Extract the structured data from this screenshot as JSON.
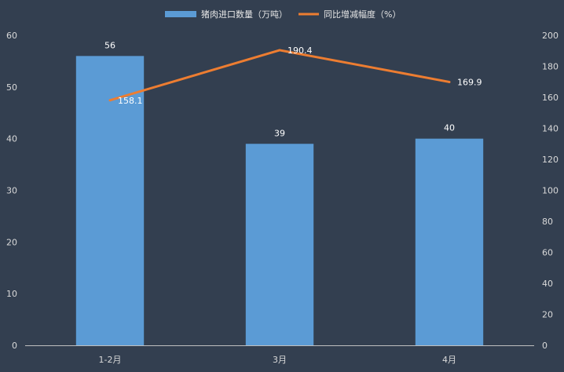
{
  "chart_data": {
    "type": "bar",
    "categories": [
      "1-2月",
      "3月",
      "4月"
    ],
    "series": [
      {
        "name": "猪肉进口数量（万吨）",
        "type": "bar",
        "axis": "left",
        "values": [
          56,
          39,
          40
        ],
        "color": "#5b9bd5"
      },
      {
        "name": "同比增减幅度（%）",
        "type": "line",
        "axis": "right",
        "values": [
          158.1,
          190.4,
          169.9
        ],
        "color": "#ed7d31"
      }
    ],
    "data_labels": {
      "bars": [
        "56",
        "39",
        "40"
      ],
      "line": [
        "158.1",
        "190.4",
        "169.9"
      ]
    },
    "y_left": {
      "ylim": [
        0,
        60
      ],
      "ticks": [
        "0",
        "10",
        "20",
        "30",
        "40",
        "50",
        "60"
      ]
    },
    "y_right": {
      "ylim": [
        0,
        200
      ],
      "ticks": [
        "0",
        "20",
        "40",
        "60",
        "80",
        "100",
        "120",
        "140",
        "160",
        "180",
        "200"
      ]
    },
    "legend": {
      "placement": "top"
    },
    "grid": false,
    "background": "#333f50"
  }
}
